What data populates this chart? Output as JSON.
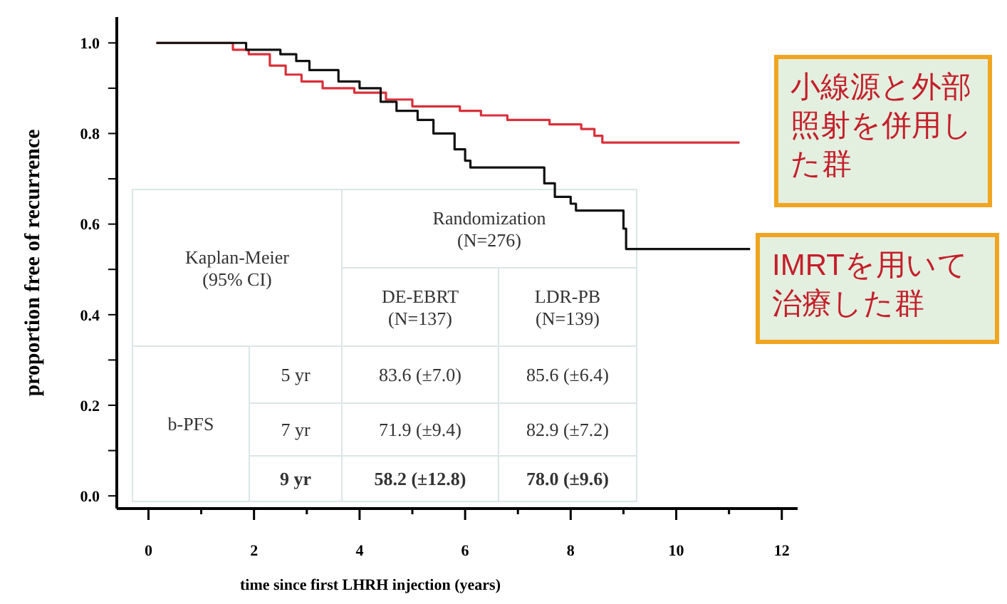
{
  "chart_data": {
    "type": "step",
    "xlabel": "time since first  LHRH  injection (years)",
    "ylabel": "proportion free of recurrence",
    "xlim": [
      -0.6,
      12.3
    ],
    "ylim": [
      -0.028,
      1.057
    ],
    "xticks": [
      {
        "value": 0,
        "label": "0"
      },
      {
        "value": 1,
        "label": null
      },
      {
        "value": 2,
        "label": "2"
      },
      {
        "value": 3,
        "label": null
      },
      {
        "value": 4,
        "label": "4"
      },
      {
        "value": 5,
        "label": null
      },
      {
        "value": 6,
        "label": "6"
      },
      {
        "value": 7,
        "label": null
      },
      {
        "value": 8,
        "label": "8"
      },
      {
        "value": 9,
        "label": null
      },
      {
        "value": 10,
        "label": "10"
      },
      {
        "value": 11,
        "label": null
      },
      {
        "value": 12,
        "label": "12"
      }
    ],
    "yticks": [
      {
        "value": 0,
        "label": "0.0"
      },
      {
        "value": 0.1,
        "label": null
      },
      {
        "value": 0.2,
        "label": "0.2"
      },
      {
        "value": 0.3,
        "label": null
      },
      {
        "value": 0.4,
        "label": "0.4"
      },
      {
        "value": 0.5,
        "label": null
      },
      {
        "value": 0.6,
        "label": "0.6"
      },
      {
        "value": 0.7,
        "label": null
      },
      {
        "value": 0.8,
        "label": "0.8"
      },
      {
        "value": 0.9,
        "label": null
      },
      {
        "value": 1.0,
        "label": "1.0"
      }
    ],
    "grid": false,
    "series": [
      {
        "name": "小線源と外部照射を併用した群",
        "color": "#d9303a",
        "x": [
          0.15,
          1.6,
          1.9,
          2.3,
          2.6,
          2.9,
          3.3,
          3.9,
          4.5,
          5.0,
          5.9,
          6.3,
          6.8,
          7.6,
          8.2,
          8.45,
          8.6,
          11.2
        ],
        "values": [
          1,
          0.985,
          0.975,
          0.95,
          0.93,
          0.915,
          0.9,
          0.89,
          0.875,
          0.86,
          0.85,
          0.84,
          0.83,
          0.82,
          0.81,
          0.795,
          0.78,
          0.78
        ]
      },
      {
        "name": "IMRTを用いて治療した群",
        "color": "#111111",
        "x": [
          0.15,
          1.85,
          2.5,
          2.8,
          3.05,
          3.6,
          4.0,
          4.4,
          4.7,
          5.1,
          5.4,
          5.8,
          6.0,
          6.1,
          7.5,
          7.7,
          8.0,
          8.1,
          9.0,
          9.05,
          11.4
        ],
        "values": [
          1,
          0.985,
          0.975,
          0.96,
          0.94,
          0.915,
          0.9,
          0.87,
          0.85,
          0.83,
          0.8,
          0.765,
          0.74,
          0.725,
          0.69,
          0.66,
          0.645,
          0.63,
          0.59,
          0.545,
          0.545
        ]
      }
    ],
    "annotations": [
      "Kaplan-Meier\n(95% CI)",
      "Randomization\n(N=276)",
      "DE-EBRT\n(N=137)",
      "LDR-PB\n(N=139)",
      "b-PFS",
      "5 yr",
      "83.6 (±7.0)",
      "85.6 (±6.4)",
      "7 yr",
      "71.9 (±9.4)",
      "82.9 (±7.2)",
      "9 yr",
      "58.2 (±12.8)",
      "78.0 (±9.6)"
    ]
  }
}
